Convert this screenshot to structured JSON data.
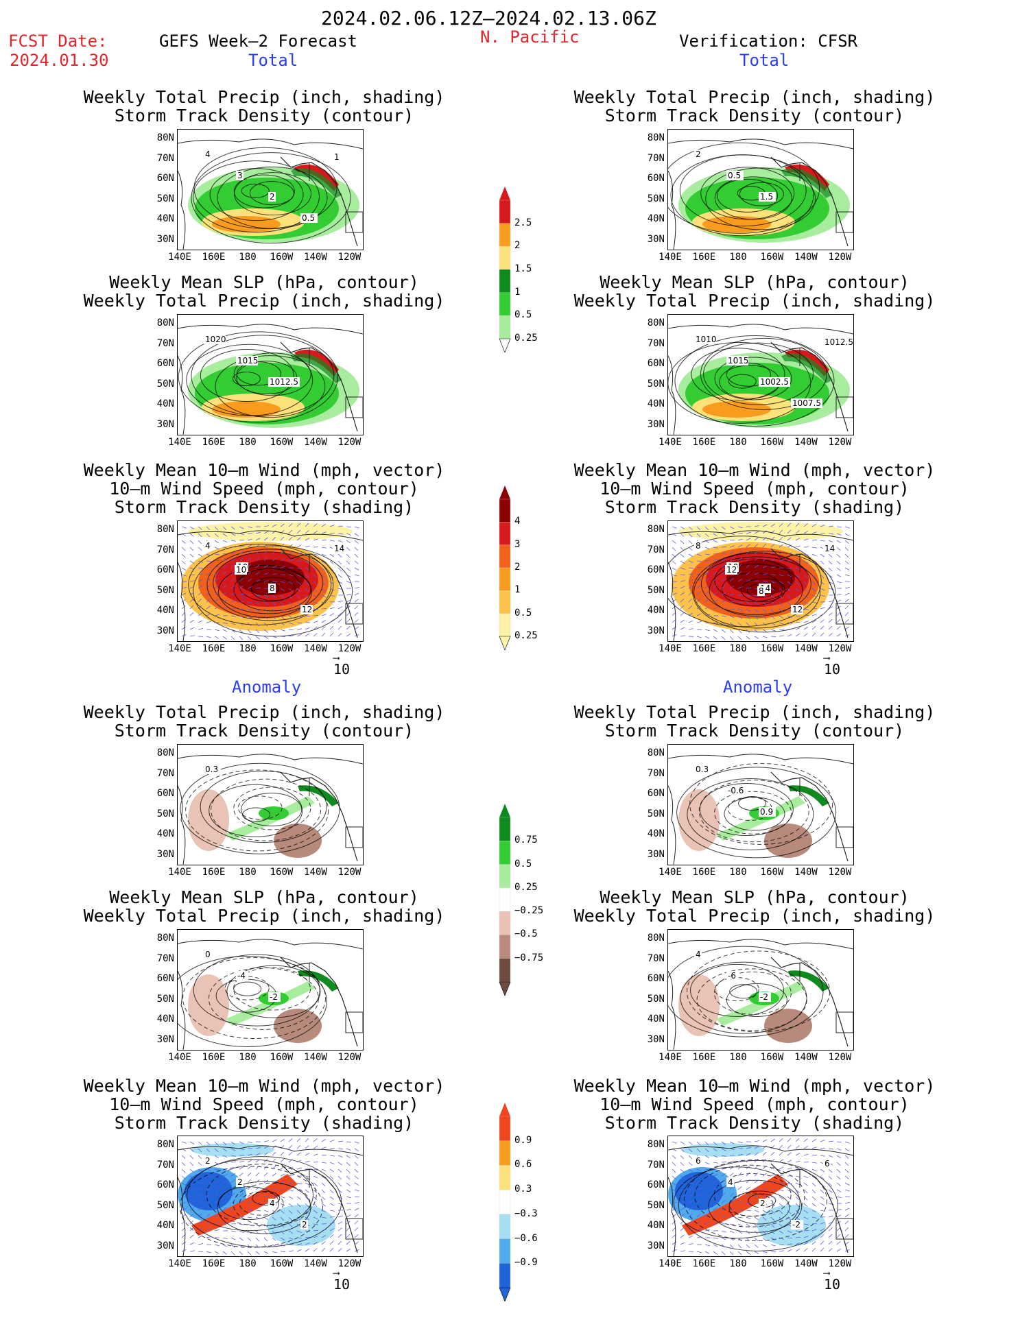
{
  "header": {
    "date_range": "2024.02.06.12Z–2024.02.13.06Z",
    "fcst_label": "FCST Date:",
    "fcst_date": "2024.01.30",
    "left_title": "GEFS Week–2 Forecast",
    "region": "N. Pacific",
    "right_title": "Verification: CFSR"
  },
  "sections": {
    "total": "Total",
    "anomaly": "Anomaly"
  },
  "panel_titles": {
    "precip_storm": [
      "Weekly Total Precip (inch, shading)",
      "Storm Track Density (contour)"
    ],
    "slp_precip": [
      "Weekly Mean SLP (hPa, contour)",
      "Weekly Total Precip (inch, shading)"
    ],
    "wind_storm": [
      "Weekly Mean 10–m Wind (mph, vector)",
      "10–m Wind Speed (mph, contour)",
      "Storm Track Density (shading)"
    ]
  },
  "axes": {
    "lat_ticks": [
      "80N",
      "70N",
      "60N",
      "50N",
      "40N",
      "30N"
    ],
    "lon_ticks": [
      "140E",
      "160E",
      "180",
      "160W",
      "140W",
      "120W"
    ]
  },
  "vector_ref": "10",
  "colorbars": {
    "total_precip": {
      "labels": [
        "2.5",
        "2",
        "1.5",
        "1",
        "0.5",
        "0.25"
      ],
      "colors": [
        "#d7191c",
        "#f99b1c",
        "#fde27b",
        "#0f8a1f",
        "#33cc33",
        "#a8ec9e"
      ]
    },
    "total_storm": {
      "labels": [
        "4",
        "3",
        "2",
        "1",
        "0.5",
        "0.25"
      ],
      "colors": [
        "#8b0000",
        "#d7191c",
        "#f1611b",
        "#f99b1c",
        "#fcc24a",
        "#fdf3a7"
      ]
    },
    "anom_precip": {
      "labels": [
        "0.75",
        "0.5",
        "0.25",
        "−0.25",
        "−0.5",
        "−0.75"
      ],
      "colors": [
        "#0f8a1f",
        "#33cc33",
        "#a8ec9e",
        "#ffffff",
        "#e9c3b5",
        "#b78a7b",
        "#6d4a3d"
      ]
    },
    "anom_storm": {
      "labels": [
        "0.9",
        "0.6",
        "0.3",
        "−0.3",
        "−0.6",
        "−0.9"
      ],
      "colors": [
        "#f0461e",
        "#f99b1c",
        "#fde27b",
        "#ffffff",
        "#a6dff2",
        "#4fa9ec",
        "#1f64d8"
      ]
    }
  },
  "map_labels": {
    "fc_precip_total": [
      "4",
      "3",
      "2",
      "0.5",
      "1"
    ],
    "vf_precip_total": [
      "2",
      "0.5",
      "1.5"
    ],
    "fc_slp_total": [
      "1020",
      "1015",
      "1012.5"
    ],
    "vf_slp_total": [
      "1010",
      "1015",
      "1002.5",
      "1007.5",
      "1012.5"
    ],
    "fc_wind_total": [
      "4",
      "10",
      "8",
      "12",
      "14",
      "10"
    ],
    "vf_wind_total": [
      "8",
      "10",
      "14",
      "12",
      "14",
      "12",
      "8"
    ],
    "fc_precip_anom": [
      "0.3"
    ],
    "vf_precip_anom": [
      "0.3",
      "-0.6",
      "0.9"
    ],
    "fc_slp_anom": [
      "0",
      "-4",
      "-2"
    ],
    "vf_slp_anom": [
      "4",
      "-6",
      "-2"
    ],
    "fc_wind_anom": [
      "2",
      "2",
      "4",
      "2"
    ],
    "vf_wind_anom": [
      "6",
      "4",
      "2",
      "-2",
      "6"
    ]
  }
}
